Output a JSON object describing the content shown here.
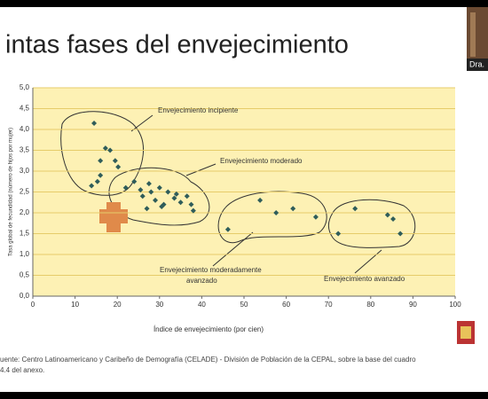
{
  "slide_title": "intas fases del envejecimiento",
  "webcam_label": "Dra.",
  "chart_data": {
    "type": "scatter",
    "xlabel": "Índice de envejecimiento (por cien)",
    "ylabel": "Tasa global de fecundidad (número de hijos por mujer)",
    "x": [
      14.5,
      17.2,
      18.3,
      16,
      19.5,
      20.2,
      16,
      15.3,
      13.9,
      22,
      24,
      25.5,
      26,
      27.5,
      28,
      29,
      30,
      31,
      32,
      33.5,
      34,
      35,
      36.5,
      37.5,
      38,
      30.5,
      27,
      46.2,
      53.8,
      57.6,
      61.6,
      67,
      76.3,
      84,
      85.3,
      72.3,
      87
    ],
    "values": [
      4.15,
      3.55,
      3.5,
      3.25,
      3.25,
      3.1,
      2.9,
      2.75,
      2.65,
      2.6,
      2.75,
      2.55,
      2.4,
      2.7,
      2.5,
      2.3,
      2.6,
      2.2,
      2.5,
      2.35,
      2.45,
      2.25,
      2.4,
      2.2,
      2.05,
      2.15,
      2.1,
      1.6,
      2.3,
      2.0,
      2.1,
      1.9,
      2.1,
      1.95,
      1.85,
      1.5,
      1.5
    ],
    "color": "#2f5d5a",
    "xlim": [
      0,
      100
    ],
    "xticks": [
      0,
      10,
      20,
      30,
      40,
      50,
      60,
      70,
      80,
      90,
      100
    ],
    "ylim": [
      0,
      5
    ],
    "yticks": [
      {
        "value": 0,
        "label": "0,0"
      },
      {
        "value": 0.5,
        "label": "0,5"
      },
      {
        "value": 1,
        "label": "1,0"
      },
      {
        "value": 1.5,
        "label": "1,5"
      },
      {
        "value": 2,
        "label": "2,0"
      },
      {
        "value": 2.5,
        "label": "2,5"
      },
      {
        "value": 3,
        "label": "3,0"
      },
      {
        "value": 3.5,
        "label": "3,5"
      },
      {
        "value": 4,
        "label": "4,0"
      },
      {
        "value": 4.5,
        "label": "4,5"
      },
      {
        "value": 5,
        "label": "5,0"
      }
    ],
    "grid": true,
    "annotations": [
      "Envejecimiento incipiente",
      "Envejecimiento moderado",
      "Envejecimiento moderadamente",
      "avanzado",
      "Envejecimiento avanzado"
    ]
  },
  "source": [
    "uente: Centro Latinoamericano y Caribeño de Demografía (CELADE) - División de Población de la CEPAL, sobre la base del cuadro",
    "4.4 del anexo."
  ]
}
